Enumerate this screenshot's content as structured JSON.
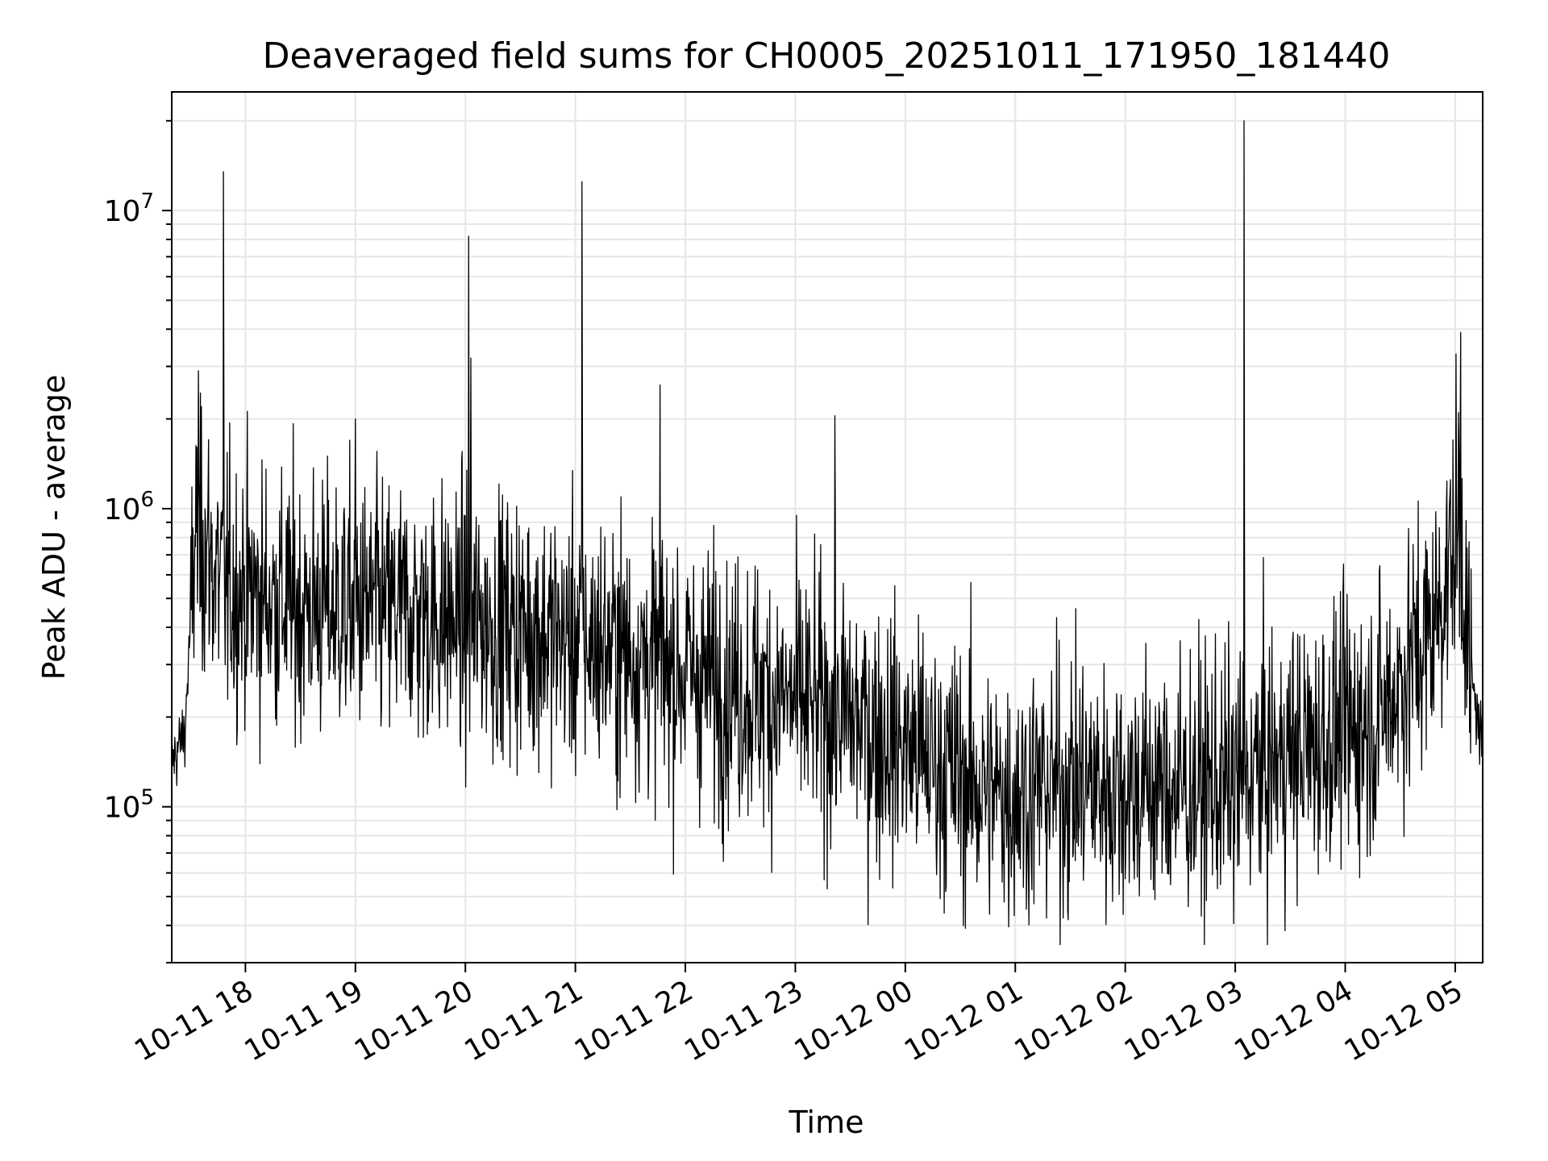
{
  "chart_data": {
    "type": "line",
    "title": "Deaveraged field sums for CH0005_20251011_171950_181440",
    "xlabel": "Time",
    "ylabel": "Peak ADU - average",
    "yscale": "log",
    "ylim": [
      30000,
      25000000
    ],
    "xlim_hours": [
      17.33,
      29.25
    ],
    "grid": true,
    "line_color": "#000000",
    "grid_color": "#e6e6e6",
    "x_ticks": [
      {
        "label": "10-11 18",
        "hour": 18
      },
      {
        "label": "10-11 19",
        "hour": 19
      },
      {
        "label": "10-11 20",
        "hour": 20
      },
      {
        "label": "10-11 21",
        "hour": 21
      },
      {
        "label": "10-11 22",
        "hour": 22
      },
      {
        "label": "10-11 23",
        "hour": 23
      },
      {
        "label": "10-12 00",
        "hour": 24
      },
      {
        "label": "10-12 01",
        "hour": 25
      },
      {
        "label": "10-12 02",
        "hour": 26
      },
      {
        "label": "10-12 03",
        "hour": 27
      },
      {
        "label": "10-12 04",
        "hour": 28
      },
      {
        "label": "10-12 05",
        "hour": 29
      }
    ],
    "y_major_ticks": [
      {
        "exponent": "5",
        "value": 100000
      },
      {
        "exponent": "6",
        "value": 1000000
      },
      {
        "exponent": "7",
        "value": 10000000
      }
    ],
    "y_base_label": "10",
    "baseline_anchors": [
      [
        17.33,
        140000
      ],
      [
        17.45,
        180000
      ],
      [
        17.55,
        900000
      ],
      [
        17.65,
        700000
      ],
      [
        17.8,
        550000
      ],
      [
        18.5,
        470000
      ],
      [
        19.5,
        450000
      ],
      [
        20.5,
        400000
      ],
      [
        21.5,
        330000
      ],
      [
        22.5,
        250000
      ],
      [
        23.5,
        200000
      ],
      [
        24.0,
        160000
      ],
      [
        24.8,
        110000
      ],
      [
        25.5,
        120000
      ],
      [
        26.5,
        115000
      ],
      [
        27.0,
        120000
      ],
      [
        27.5,
        150000
      ],
      [
        28.3,
        200000
      ],
      [
        28.8,
        400000
      ],
      [
        29.05,
        900000
      ],
      [
        29.12,
        300000
      ],
      [
        29.25,
        160000
      ]
    ],
    "spikes": [
      {
        "hour": 17.8,
        "value": 13500000
      },
      {
        "hour": 19.0,
        "value": 2000000
      },
      {
        "hour": 20.03,
        "value": 8200000
      },
      {
        "hour": 20.05,
        "value": 3200000
      },
      {
        "hour": 21.06,
        "value": 12500000
      },
      {
        "hour": 21.77,
        "value": 2600000
      },
      {
        "hour": 23.36,
        "value": 2050000
      },
      {
        "hour": 27.08,
        "value": 20000000
      },
      {
        "hour": 29.05,
        "value": 3900000
      },
      {
        "hour": 29.03,
        "value": 2100000
      },
      {
        "hour": 17.6,
        "value": 2200000
      }
    ]
  }
}
